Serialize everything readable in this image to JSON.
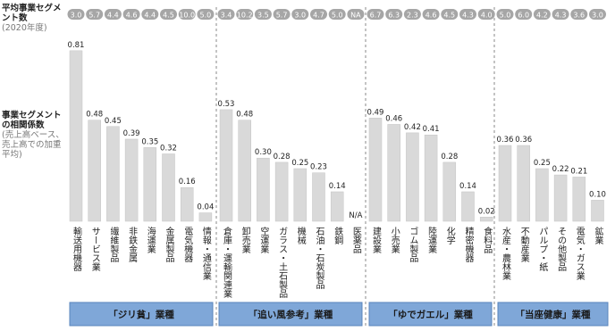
{
  "chart_data": {
    "type": "bar",
    "segment_title": "平均事業セグメント数",
    "segment_subtitle": "(2020年度)",
    "value_title": "事業セグメントの相関係数",
    "value_subtitle": "(売上高ベース、売上高での加重平均)",
    "color": "#d9d9d9",
    "segment_color": "#a6a6a6",
    "group_color": "#7fa7d8",
    "groups": [
      {
        "name": "「ジリ貧」業種",
        "categories": [
          "輸送用機器",
          "サービス業",
          "繊維製品",
          "非鉄金属",
          "海運業",
          "金属製品",
          "電気機器",
          "情報・通信業"
        ],
        "values": [
          0.81,
          0.48,
          0.45,
          0.39,
          0.35,
          0.32,
          0.16,
          0.04
        ],
        "value_labels": [
          "0.81",
          "0.48",
          "0.45",
          "0.39",
          "0.35",
          "0.32",
          "0.16",
          "0.04"
        ],
        "segments": [
          3.0,
          5.7,
          4.4,
          4.6,
          4.4,
          4.5,
          10.0,
          5.0
        ],
        "segment_labels": [
          "3.0",
          "5.7",
          "4.4",
          "4.6",
          "4.4",
          "4.5",
          "10.0",
          "5.0"
        ]
      },
      {
        "name": "「追い風参考」業種",
        "categories": [
          "倉庫・運輸関連業",
          "卸売業",
          "空運業",
          "ガラス・土石製品",
          "機械",
          "石油・石炭製品",
          "鉄鋼",
          "医薬品"
        ],
        "values": [
          0.53,
          0.48,
          0.3,
          0.28,
          0.25,
          0.23,
          0.14,
          null
        ],
        "value_labels": [
          "0.53",
          "0.48",
          "0.30",
          "0.28",
          "0.25",
          "0.23",
          "0.14",
          "N/A"
        ],
        "segments": [
          3.4,
          10.2,
          3.5,
          5.7,
          3.0,
          4.7,
          5.0,
          null
        ],
        "segment_labels": [
          "3.4",
          "10.2",
          "3.5",
          "5.7",
          "3.0",
          "4.7",
          "5.0",
          "NA"
        ]
      },
      {
        "name": "「ゆでガエル」業種",
        "categories": [
          "建設業",
          "小売業",
          "ゴム製品",
          "陸運業",
          "化学",
          "精密機器",
          "食料品"
        ],
        "values": [
          0.49,
          0.46,
          0.42,
          0.41,
          0.28,
          0.14,
          0.02
        ],
        "value_labels": [
          "0.49",
          "0.46",
          "0.42",
          "0.41",
          "0.28",
          "0.14",
          "0.02"
        ],
        "segments": [
          6.7,
          6.3,
          2.3,
          4.6,
          4.5,
          4.3,
          4.0
        ],
        "segment_labels": [
          "6.7",
          "6.3",
          "2.3",
          "4.6",
          "4.5",
          "4.3",
          "4.0"
        ]
      },
      {
        "name": "「当座健康」業種",
        "categories": [
          "水産・農林業",
          "不動産業",
          "パルプ・紙",
          "その他製品",
          "電気・ガス業",
          "鉱業"
        ],
        "values": [
          0.36,
          0.36,
          0.25,
          0.22,
          0.21,
          0.1
        ],
        "value_labels": [
          "0.36",
          "0.36",
          "0.25",
          "0.22",
          "0.21",
          "0.10"
        ],
        "segments": [
          5.0,
          6.0,
          4.2,
          4.3,
          3.6,
          3.0
        ],
        "segment_labels": [
          "5.0",
          "6.0",
          "4.2",
          "4.3",
          "3.6",
          "3.0"
        ]
      }
    ]
  }
}
